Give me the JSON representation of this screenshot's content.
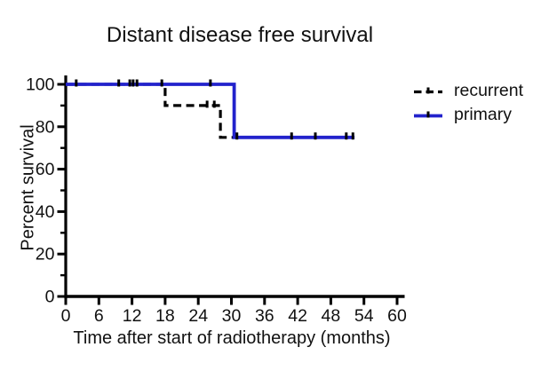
{
  "chart_data": {
    "type": "line",
    "subtype": "kaplan-meier-step",
    "title": "Distant disease free survival",
    "xlabel": "Time after start of radiotherapy (months)",
    "ylabel": "Percent survival",
    "xlim": [
      0,
      60
    ],
    "ylim": [
      0,
      100
    ],
    "xticks": [
      0,
      6,
      12,
      18,
      24,
      30,
      36,
      42,
      48,
      54,
      60
    ],
    "yticks_major": [
      0,
      20,
      40,
      60,
      80,
      100
    ],
    "yticks_minor": [
      10,
      30,
      50,
      70,
      90
    ],
    "grid": false,
    "axis_color": "#000000",
    "censor_mark_color": "#000000",
    "legend_position": "right-top",
    "series": [
      {
        "name": "recurrent",
        "color": "#000000",
        "line_style": "dashed",
        "points": [
          [
            0,
            100
          ],
          [
            18,
            100
          ],
          [
            18,
            90
          ],
          [
            28,
            90
          ],
          [
            28,
            75
          ],
          [
            31.5,
            75
          ]
        ],
        "censor_marks": [
          [
            1.9,
            100
          ],
          [
            9.6,
            100
          ],
          [
            11.6,
            100
          ],
          [
            12.2,
            100
          ],
          [
            12.9,
            100
          ],
          [
            25.6,
            90
          ],
          [
            26.9,
            90
          ],
          [
            31,
            75
          ]
        ]
      },
      {
        "name": "primary",
        "color": "#2222cc",
        "line_style": "solid",
        "points": [
          [
            0,
            100
          ],
          [
            30.5,
            100
          ],
          [
            30.5,
            75
          ],
          [
            52.3,
            75
          ]
        ],
        "censor_marks": [
          [
            17.4,
            100
          ],
          [
            26.2,
            100
          ],
          [
            40.9,
            75
          ],
          [
            45.2,
            75
          ],
          [
            50.8,
            75
          ],
          [
            52,
            75
          ]
        ]
      }
    ]
  }
}
